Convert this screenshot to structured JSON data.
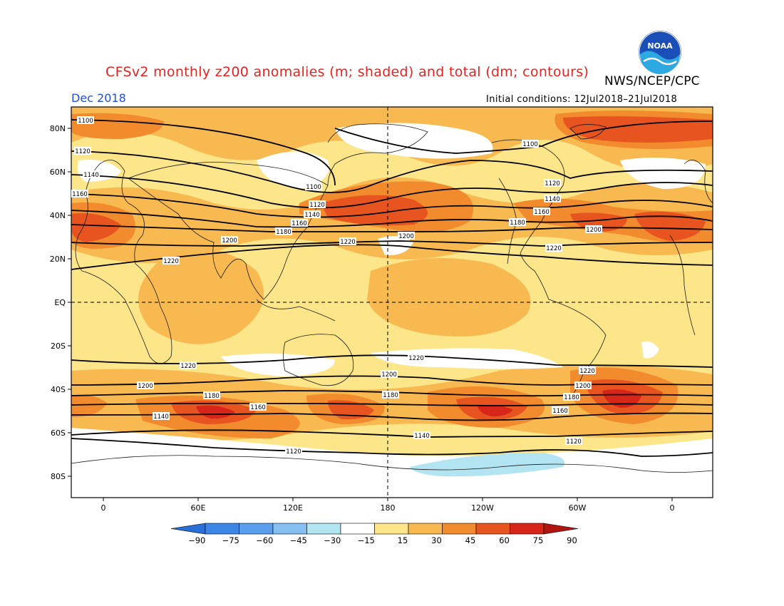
{
  "title": "CFSv2 monthly z200 anomalies (m; shaded) and total (dm; contours)",
  "agency": "NWS/NCEP/CPC",
  "logo_text": "NOAA",
  "month": "Dec 2018",
  "initial_conditions": "Initial conditions: 12Jul2018–21Jul2018",
  "map": {
    "lat_labels": [
      "80N",
      "60N",
      "40N",
      "20N",
      "EQ",
      "20S",
      "40S",
      "60S",
      "80S"
    ],
    "lon_labels": [
      "0",
      "60E",
      "120E",
      "180",
      "120W",
      "60W",
      "0"
    ]
  },
  "colorbar": {
    "labels": [
      "−90",
      "−75",
      "−60",
      "−45",
      "−30",
      "−15",
      "15",
      "30",
      "45",
      "60",
      "75",
      "90"
    ],
    "colors": [
      "#2a6fd8",
      "#3c86e8",
      "#5a9eee",
      "#86bff2",
      "#b2e4f2",
      "#ffffff",
      "#fde58a",
      "#f8b950",
      "#f28a2e",
      "#e85420",
      "#d8251a",
      "#b0150f"
    ]
  },
  "contour_labels": [
    "1100",
    "1120",
    "1140",
    "1160",
    "1180",
    "1200",
    "1220"
  ]
}
